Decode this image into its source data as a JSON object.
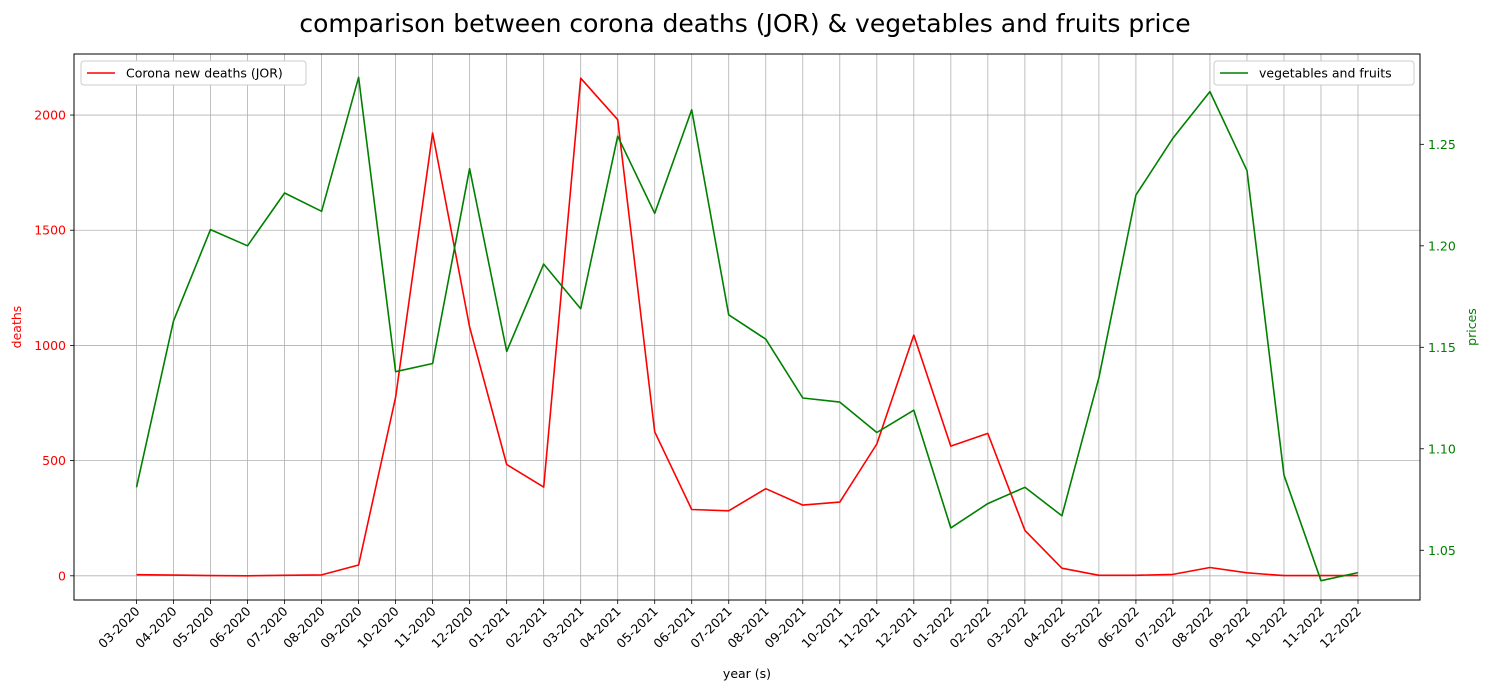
{
  "chart_data": {
    "type": "line",
    "title": "comparison between corona deaths (JOR) & vegetables and fruits price",
    "xlabel": "year (s)",
    "ylabel_left": "deaths",
    "ylabel_right": "prices",
    "ylim_left": [
      -105,
      2265
    ],
    "ylim_right": [
      1.0255,
      1.2945
    ],
    "yticks_left": [
      "0",
      "500",
      "1000",
      "1500",
      "2000"
    ],
    "yticks_right": [
      "1.05",
      "1.10",
      "1.15",
      "1.20",
      "1.25"
    ],
    "grid": true,
    "categories": [
      "03-2020",
      "04-2020",
      "05-2020",
      "06-2020",
      "07-2020",
      "08-2020",
      "09-2020",
      "10-2020",
      "11-2020",
      "12-2020",
      "01-2021",
      "02-2021",
      "03-2021",
      "04-2021",
      "05-2021",
      "06-2021",
      "07-2021",
      "08-2021",
      "09-2021",
      "10-2021",
      "11-2021",
      "12-2021",
      "01-2022",
      "02-2022",
      "03-2022",
      "04-2022",
      "05-2022",
      "06-2022",
      "07-2022",
      "08-2022",
      "09-2022",
      "10-2022",
      "11-2022",
      "12-2022"
    ],
    "series": [
      {
        "name": "Corona new deaths (JOR)",
        "axis": "left",
        "color": "#ff0000",
        "legend_position": "upper left",
        "values": [
          5,
          3,
          1,
          0,
          2,
          4,
          47,
          775,
          1922,
          1080,
          483,
          385,
          2160,
          1980,
          625,
          288,
          282,
          378,
          307,
          320,
          572,
          1045,
          563,
          618,
          197,
          33,
          2,
          2,
          6,
          36,
          13,
          1,
          1,
          1
        ]
      },
      {
        "name": "vegetables and fruits",
        "axis": "right",
        "color": "#008000",
        "legend_position": "upper right",
        "values": [
          1.081,
          1.163,
          1.208,
          1.2,
          1.226,
          1.217,
          1.283,
          1.138,
          1.142,
          1.238,
          1.148,
          1.191,
          1.169,
          1.254,
          1.216,
          1.267,
          1.166,
          1.154,
          1.125,
          1.123,
          1.108,
          1.119,
          1.061,
          1.073,
          1.081,
          1.067,
          1.135,
          1.225,
          1.253,
          1.276,
          1.237,
          1.087,
          1.035,
          1.039
        ]
      }
    ]
  }
}
